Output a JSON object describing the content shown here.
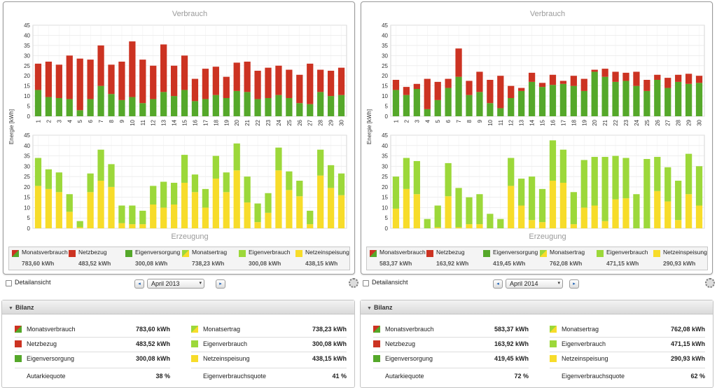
{
  "colors": {
    "netzbezug": "#cc3322",
    "eigenversorgung": "#55a82a",
    "eigenverbrauch": "#9cd83a",
    "netzeinspeisung": "#f7dc2a",
    "grid": "#e3e3e3",
    "axis": "#888888",
    "chart_title": "#9a9a9a"
  },
  "chart_data": [
    {
      "type": "bar",
      "month_label": "April 2013",
      "title": "Verbrauch",
      "subtitle": "Erzeugung",
      "ylabel": "Energie [kWh]",
      "ylim": [
        0,
        45
      ],
      "yticks": [
        "0",
        "5",
        "10",
        "15",
        "20",
        "25",
        "30",
        "35",
        "40",
        "45"
      ],
      "categories": [
        "1",
        "2",
        "3",
        "4",
        "5",
        "6",
        "7",
        "8",
        "9",
        "10",
        "11",
        "12",
        "13",
        "14",
        "15",
        "16",
        "17",
        "18",
        "19",
        "20",
        "21",
        "22",
        "23",
        "24",
        "25",
        "26",
        "27",
        "28",
        "29",
        "30"
      ],
      "verbrauch_series": [
        {
          "name": "Eigenversorgung",
          "values": [
            13,
            9.5,
            9,
            8.5,
            3,
            8.5,
            15,
            11,
            8,
            9.5,
            6.5,
            8.5,
            12,
            10,
            13,
            7.5,
            8.5,
            10.5,
            9,
            12.5,
            12,
            8.5,
            9,
            10.5,
            9,
            6.5,
            6,
            12,
            10,
            10.5
          ]
        },
        {
          "name": "Netzbezug",
          "values": [
            13,
            17.5,
            16.5,
            21.5,
            25.5,
            19.5,
            20,
            14.5,
            19,
            27.5,
            21.5,
            16.5,
            23.5,
            15,
            17,
            11,
            15,
            14,
            10.5,
            14,
            15,
            14,
            15,
            14.5,
            14,
            14,
            20,
            11,
            12.5,
            13.5
          ]
        }
      ],
      "erzeugung_series": [
        {
          "name": "Netzeinspeisung",
          "values": [
            20.5,
            19,
            17.5,
            8,
            0.5,
            17.5,
            23,
            20,
            2.5,
            2,
            2,
            11.5,
            10,
            11.5,
            22,
            17.5,
            10,
            24,
            17.5,
            28,
            12.5,
            3,
            7.5,
            28,
            18.5,
            15.5,
            2,
            25.5,
            19.5,
            16
          ]
        },
        {
          "name": "Eigenverbrauch",
          "values": [
            13.5,
            9.5,
            9.5,
            8.5,
            3,
            9,
            15,
            11,
            8.5,
            9,
            6.5,
            9,
            12.5,
            10.5,
            13.5,
            8.5,
            9,
            11,
            9.5,
            13,
            12.5,
            9,
            9.5,
            11,
            9,
            7.5,
            6.5,
            12.5,
            11,
            10.5
          ]
        }
      ],
      "legend": [
        {
          "label": "Monatsverbrauch",
          "value": "783,60 kWh",
          "swatch": "split-red-green"
        },
        {
          "label": "Netzbezug",
          "value": "483,52 kWh",
          "swatch": "red"
        },
        {
          "label": "Eigenversorgung",
          "value": "300,08 kWh",
          "swatch": "green"
        },
        {
          "label": "Monatsertrag",
          "value": "738,23 kWh",
          "swatch": "split-lime-yellow"
        },
        {
          "label": "Eigenverbrauch",
          "value": "300,08 kWh",
          "swatch": "lime"
        },
        {
          "label": "Netzeinspeisung",
          "value": "438,15 kWh",
          "swatch": "yellow"
        }
      ]
    },
    {
      "type": "bar",
      "month_label": "April 2014",
      "title": "Verbrauch",
      "subtitle": "Erzeugung",
      "ylabel": "Energie [kWh]",
      "ylim": [
        0,
        45
      ],
      "yticks": [
        "0",
        "5",
        "10",
        "15",
        "20",
        "25",
        "30",
        "35",
        "40",
        "45"
      ],
      "categories": [
        "1",
        "2",
        "3",
        "4",
        "5",
        "6",
        "7",
        "8",
        "9",
        "10",
        "11",
        "12",
        "13",
        "14",
        "15",
        "16",
        "17",
        "18",
        "19",
        "20",
        "21",
        "22",
        "23",
        "24",
        "25",
        "26",
        "27",
        "28",
        "29",
        "30"
      ],
      "verbrauch_series": [
        {
          "name": "Eigenversorgung",
          "values": [
            13,
            10.5,
            13.5,
            3.5,
            8,
            14,
            19.5,
            10.5,
            12,
            6.5,
            4,
            9,
            12.5,
            17,
            14.5,
            15.5,
            16,
            15,
            12.5,
            22,
            19.5,
            17,
            17.5,
            15,
            12.5,
            18,
            14,
            17,
            16,
            16.5
          ]
        },
        {
          "name": "Netzbezug",
          "values": [
            5,
            4,
            2.5,
            15,
            9,
            4.5,
            14,
            7,
            10,
            11.5,
            16,
            6,
            1.5,
            4.5,
            2,
            5,
            1.5,
            5,
            6,
            1,
            4,
            5,
            4,
            7,
            5.5,
            2.5,
            5,
            3.5,
            5,
            3.5
          ]
        }
      ],
      "erzeugung_series": [
        {
          "name": "Netzeinspeisung",
          "values": [
            9.5,
            19,
            16.5,
            0,
            0.5,
            15.5,
            0.5,
            2,
            2,
            0,
            0,
            20.5,
            11,
            4,
            3,
            23,
            22,
            2,
            10,
            11,
            3.5,
            14,
            14.5,
            0,
            0,
            18,
            13,
            4,
            16.5,
            11
          ]
        },
        {
          "name": "Eigenverbrauch",
          "values": [
            15.5,
            15,
            16,
            4.5,
            10.5,
            16,
            19,
            13,
            14.5,
            7,
            4.5,
            13.5,
            13,
            21,
            16,
            19.5,
            16,
            15.5,
            23,
            23.5,
            31,
            21,
            19.5,
            16.5,
            33.5,
            16.5,
            16.5,
            19,
            19.5,
            19
          ]
        }
      ],
      "legend": [
        {
          "label": "Monatsverbrauch",
          "value": "583,37 kWh",
          "swatch": "split-red-green"
        },
        {
          "label": "Netzbezug",
          "value": "163,92 kWh",
          "swatch": "red"
        },
        {
          "label": "Eigenversorgung",
          "value": "419,45 kWh",
          "swatch": "green"
        },
        {
          "label": "Monatsertrag",
          "value": "762,08 kWh",
          "swatch": "split-lime-yellow"
        },
        {
          "label": "Eigenverbrauch",
          "value": "471,15 kWh",
          "swatch": "lime"
        },
        {
          "label": "Netzeinspeisung",
          "value": "290,93 kWh",
          "swatch": "yellow"
        }
      ]
    }
  ],
  "controls": [
    {
      "detail_label": "Detailansicht",
      "prev_icon": "◂",
      "next_icon": "▸",
      "selected_month": "April 2013",
      "select_arrow": "▾"
    },
    {
      "detail_label": "Detailansicht",
      "prev_icon": "◂",
      "next_icon": "▸",
      "selected_month": "April 2014",
      "select_arrow": "▾"
    }
  ],
  "bilanz": [
    {
      "heading": "Bilanz",
      "left": [
        {
          "label": "Monatsverbrauch",
          "value": "783,60 kWh",
          "swatch": "split-red-green"
        },
        {
          "label": "Netzbezug",
          "value": "483,52 kWh",
          "swatch": "red"
        },
        {
          "label": "Eigenversorgung",
          "value": "300,08 kWh",
          "swatch": "green"
        }
      ],
      "left_quote": {
        "label": "Autarkiequote",
        "value": "38 %"
      },
      "right": [
        {
          "label": "Monatsertrag",
          "value": "738,23 kWh",
          "swatch": "split-lime-yellow"
        },
        {
          "label": "Eigenverbrauch",
          "value": "300,08 kWh",
          "swatch": "lime"
        },
        {
          "label": "Netzeinspeisung",
          "value": "438,15 kWh",
          "swatch": "yellow"
        }
      ],
      "right_quote": {
        "label": "Eigenverbrauchsquote",
        "value": "41 %"
      }
    },
    {
      "heading": "Bilanz",
      "left": [
        {
          "label": "Monatsverbrauch",
          "value": "583,37 kWh",
          "swatch": "split-red-green"
        },
        {
          "label": "Netzbezug",
          "value": "163,92 kWh",
          "swatch": "red"
        },
        {
          "label": "Eigenversorgung",
          "value": "419,45 kWh",
          "swatch": "green"
        }
      ],
      "left_quote": {
        "label": "Autarkiequote",
        "value": "72 %"
      },
      "right": [
        {
          "label": "Monatsertrag",
          "value": "762,08 kWh",
          "swatch": "split-lime-yellow"
        },
        {
          "label": "Eigenverbrauch",
          "value": "471,15 kWh",
          "swatch": "lime"
        },
        {
          "label": "Netzeinspeisung",
          "value": "290,93 kWh",
          "swatch": "yellow"
        }
      ],
      "right_quote": {
        "label": "Eigenverbrauchsquote",
        "value": "62 %"
      }
    }
  ]
}
